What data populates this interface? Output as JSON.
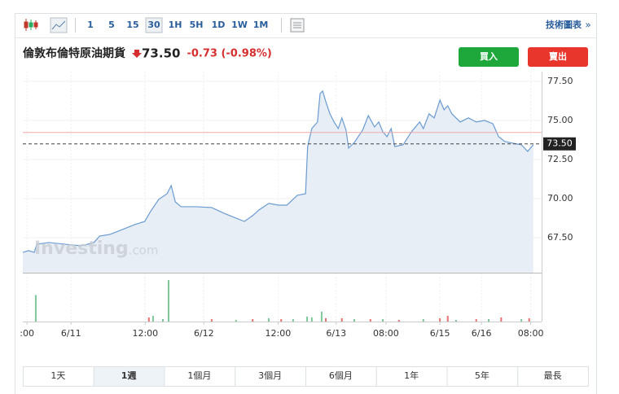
{
  "toolbar": {
    "intervals": [
      "1",
      "5",
      "15",
      "30",
      "1H",
      "5H",
      "1D",
      "1W",
      "1M"
    ],
    "selected": 3,
    "link": "技術圖表",
    "more": "»"
  },
  "header": {
    "title": "倫敦布倫特原油期貨",
    "price": "73.50",
    "change": "-0.73 (-0.98%)",
    "buy": "買入",
    "sell": "賣出"
  },
  "watermark": {
    "brand": "Investing",
    "suffix": ".com"
  },
  "chart_data": {
    "type": "area",
    "color": "#6a9bd1",
    "fill": "#e8eef6",
    "grid": true,
    "xlim": [
      0,
      100
    ],
    "xticks": [
      {
        "value": 0.8,
        "label": ":00"
      },
      {
        "value": 9.3,
        "label": "6/11"
      },
      {
        "value": 23.6,
        "label": "12:00"
      },
      {
        "value": 34.9,
        "label": "6/12"
      },
      {
        "value": 49.2,
        "label": "12:00"
      },
      {
        "value": 60.4,
        "label": "6/13"
      },
      {
        "value": 70.0,
        "label": "08:00"
      },
      {
        "value": 80.4,
        "label": "6/15"
      },
      {
        "value": 88.4,
        "label": "6/16"
      },
      {
        "value": 97.9,
        "label": "08:00"
      }
    ],
    "ylim": [
      65.26,
      78.12
    ],
    "yticks": [
      {
        "value": 77.5,
        "label": "77.50"
      },
      {
        "value": 75,
        "label": "75.00"
      },
      {
        "value": 72.5,
        "label": "72.50"
      },
      {
        "value": 70,
        "label": "70.00"
      },
      {
        "value": 67.5,
        "label": "67.50"
      }
    ],
    "last": {
      "value": 73.5,
      "label": "73.50"
    },
    "prev_close": 74.23,
    "series": [
      {
        "x": [
          0.0,
          1.1,
          2.2,
          2.7,
          5.0,
          8.2,
          11.3,
          13.7,
          14.8,
          16.8,
          19.2,
          21.5,
          23.5,
          24.6,
          26.2,
          27.8,
          28.6,
          29.4,
          30.5,
          33.3,
          36.4,
          38.8,
          41.1,
          42.7,
          44.3,
          45.5,
          47.4,
          49.3,
          50.9,
          52.9,
          54.5,
          54.9,
          55.7,
          56.8,
          57.3,
          57.8,
          58.4,
          59.2,
          60.0,
          60.8,
          61.5,
          62.3,
          62.8,
          63.9,
          65.5,
          66.6,
          67.8,
          68.6,
          69.4,
          70.2,
          71.0,
          71.7,
          73.3,
          74.9,
          76.5,
          77.2,
          78.3,
          79.3,
          80.4,
          81.2,
          81.9,
          82.7,
          84.3,
          85.9,
          87.4,
          89.0,
          90.6,
          91.7,
          92.9,
          94.5,
          96.1,
          97.3,
          98.4
        ],
        "values": [
          66.56,
          66.67,
          66.56,
          67.08,
          67.19,
          67.08,
          66.98,
          67.19,
          67.6,
          67.71,
          68.02,
          68.33,
          68.54,
          69.17,
          69.95,
          70.31,
          70.83,
          69.79,
          69.48,
          69.48,
          69.43,
          69.06,
          68.75,
          68.54,
          68.91,
          69.27,
          69.69,
          69.58,
          69.58,
          70.21,
          70.31,
          73.33,
          74.48,
          74.9,
          76.72,
          76.88,
          76.2,
          75.42,
          74.9,
          74.48,
          75.16,
          74.38,
          73.23,
          73.59,
          74.38,
          75.31,
          74.58,
          74.9,
          74.27,
          73.96,
          74.48,
          73.33,
          73.44,
          74.27,
          74.9,
          74.48,
          75.42,
          75.16,
          76.3,
          75.68,
          75.94,
          75.42,
          74.9,
          75.16,
          74.9,
          75.0,
          74.79,
          73.96,
          73.65,
          73.54,
          73.44,
          73.02,
          73.44
        ]
      }
    ],
    "volume": {
      "vlim": [
        0,
        55
      ],
      "x": [
        2.5,
        24.3,
        25.1,
        27.0,
        28.1,
        36.4,
        41.1,
        44.3,
        47.4,
        49.8,
        52.1,
        54.8,
        55.7,
        57.6,
        58.4,
        61.5,
        63.9,
        67.0,
        69.4,
        72.5,
        77.2,
        80.4,
        81.9,
        83.5,
        87.4,
        89.8,
        92.2,
        96.1,
        97.6
      ],
      "values": [
        32,
        5,
        7,
        3,
        50,
        3,
        2,
        3,
        4,
        3,
        3,
        6,
        5,
        12,
        4,
        4,
        3,
        3,
        3,
        2,
        3,
        4,
        7,
        2,
        3,
        3,
        5,
        3,
        4
      ],
      "colors": [
        "#7ec79a",
        "#e57373",
        "#7ec79a",
        "#7ec79a",
        "#7ec79a",
        "#e57373",
        "#7ec79a",
        "#e57373",
        "#7ec79a",
        "#e57373",
        "#7ec79a",
        "#7ec79a",
        "#7ec79a",
        "#7ec79a",
        "#e57373",
        "#e57373",
        "#7ec79a",
        "#e57373",
        "#7ec79a",
        "#e57373",
        "#7ec79a",
        "#e57373",
        "#e57373",
        "#7ec79a",
        "#e57373",
        "#7ec79a",
        "#e57373",
        "#7ec79a",
        "#e57373"
      ]
    }
  },
  "ranges": {
    "items": [
      "1天",
      "1週",
      "1個月",
      "3個月",
      "6個月",
      "1年",
      "5年",
      "最長"
    ],
    "selected": 1
  }
}
